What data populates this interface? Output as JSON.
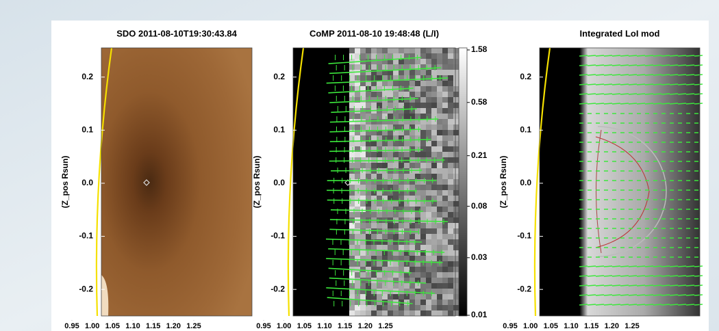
{
  "chart_data": [
    {
      "type": "image",
      "title": "SDO   2011-08-10T19:30:43.84",
      "y_label": "(Z_pos Rsun)",
      "xlim": [
        0.95,
        1.25
      ],
      "xticks": [
        {
          "value": 0.95,
          "label": "0.95"
        },
        {
          "value": 1.0,
          "label": "1.00"
        },
        {
          "value": 1.05,
          "label": "1.05"
        },
        {
          "value": 1.1,
          "label": "1.10"
        },
        {
          "value": 1.15,
          "label": "1.15"
        },
        {
          "value": 1.2,
          "label": "1.20"
        },
        {
          "value": 1.25,
          "label": "1.25"
        }
      ],
      "ylim": [
        -0.25,
        0.255
      ],
      "yticks": [
        {
          "value": -0.2,
          "label": "-0.2"
        },
        {
          "value": -0.1,
          "label": "-0.1"
        },
        {
          "value": 0,
          "label": "0.0"
        },
        0.1,
        0.2
      ]
    },
    {
      "type": "image",
      "title": "CoMP 2011-08-10 19:48:48 (L/I)",
      "y_label": "(Z_pos Rsun)",
      "xlim": [
        0.95,
        1.25
      ],
      "xticks": [
        {
          "value": 0.95,
          "label": "0.95"
        },
        {
          "value": 1.0,
          "label": "1.00"
        },
        {
          "value": 1.05,
          "label": "1.05"
        },
        {
          "value": 1.1,
          "label": "1.10"
        },
        {
          "value": 1.15,
          "label": "1.15"
        },
        {
          "value": 1.2,
          "label": "1.20"
        },
        {
          "value": 1.25,
          "label": "1.25"
        }
      ],
      "ylim": [
        -0.25,
        0.255
      ],
      "yticks": [
        {
          "value": -0.2,
          "label": "-0.2"
        },
        {
          "value": -0.1,
          "label": "-0.1"
        },
        {
          "value": 0,
          "label": "0.0"
        },
        0.1,
        0.2
      ],
      "colorbar": {
        "scale": "log",
        "lim": [
          0.01,
          1.58
        ],
        "ticks": [
          0.01,
          0.03,
          0.08,
          0.21,
          0.58,
          1.58
        ]
      }
    },
    {
      "type": "image",
      "title": "Integrated LoI mod",
      "y_label": "(Z_pos Rsun)",
      "xlim": [
        0.95,
        1.25
      ],
      "xticks": [
        {
          "value": 0.95,
          "label": "0.95"
        },
        {
          "value": 1.0,
          "label": "1.00"
        },
        {
          "value": 1.05,
          "label": "1.05"
        },
        {
          "value": 1.1,
          "label": "1.10"
        },
        {
          "value": 1.15,
          "label": "1.15"
        },
        {
          "value": 1.2,
          "label": "1.20"
        },
        {
          "value": 1.25,
          "label": "1.25"
        }
      ],
      "ylim": [
        -0.25,
        0.255
      ],
      "yticks": [
        {
          "value": -0.2,
          "label": "-0.2"
        },
        {
          "value": -0.1,
          "label": "-0.1"
        },
        {
          "value": 0,
          "label": "0.0"
        },
        0.1,
        0.2
      ]
    }
  ]
}
